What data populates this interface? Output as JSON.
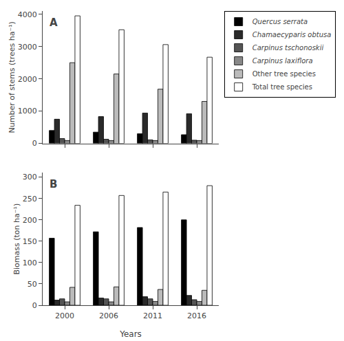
{
  "chart_data": [
    {
      "type": "bar",
      "annotations": [
        "A"
      ],
      "ylabel": "Number of stems (trees ha⁻¹)",
      "categories": [
        "2000",
        "2006",
        "2011",
        "2016"
      ],
      "series": [
        {
          "name": "Quercus serrata",
          "color": "#000000",
          "values": [
            400,
            350,
            300,
            270
          ]
        },
        {
          "name": "Chamaecyparis obtusa",
          "color": "#2a2a2a",
          "values": [
            750,
            830,
            940,
            920
          ]
        },
        {
          "name": "Carpinus tschonoskii",
          "color": "#555555",
          "values": [
            150,
            130,
            110,
            100
          ]
        },
        {
          "name": "Carpinus laxiflora",
          "color": "#888888",
          "values": [
            90,
            90,
            90,
            90
          ]
        },
        {
          "name": "Other tree species",
          "color": "#bbbbbb",
          "values": [
            2500,
            2150,
            1680,
            1300
          ]
        },
        {
          "name": "Total tree species",
          "color": "#ffffff",
          "values": [
            3950,
            3520,
            3060,
            2670
          ]
        }
      ],
      "ylim": [
        0,
        4100
      ],
      "yticks": [
        0,
        1000,
        2000,
        3000,
        4000
      ],
      "grid": false,
      "legend": "right",
      "tick_labels": "y"
    },
    {
      "type": "bar",
      "annotations": [
        "B"
      ],
      "xlabel": "Years",
      "ylabel": "Biomass (ton ha⁻¹)",
      "categories": [
        "2000",
        "2006",
        "2011",
        "2016"
      ],
      "series": [
        {
          "name": "Quercus serrata",
          "color": "#000000",
          "values": [
            157,
            172,
            182,
            200
          ]
        },
        {
          "name": "Chamaecyparis obtusa",
          "color": "#2a2a2a",
          "values": [
            12,
            17,
            20,
            23
          ]
        },
        {
          "name": "Carpinus tschonoskii",
          "color": "#555555",
          "values": [
            15,
            15,
            15,
            13
          ]
        },
        {
          "name": "Carpinus laxiflora",
          "color": "#888888",
          "values": [
            8,
            8,
            9,
            9
          ]
        },
        {
          "name": "Other tree species",
          "color": "#bbbbbb",
          "values": [
            42,
            43,
            37,
            35
          ]
        },
        {
          "name": "Total tree species",
          "color": "#ffffff",
          "values": [
            234,
            257,
            265,
            280
          ]
        }
      ],
      "ylim": [
        0,
        310
      ],
      "yticks": [
        0,
        50,
        100,
        150,
        200,
        250,
        300
      ],
      "grid": false
    }
  ]
}
